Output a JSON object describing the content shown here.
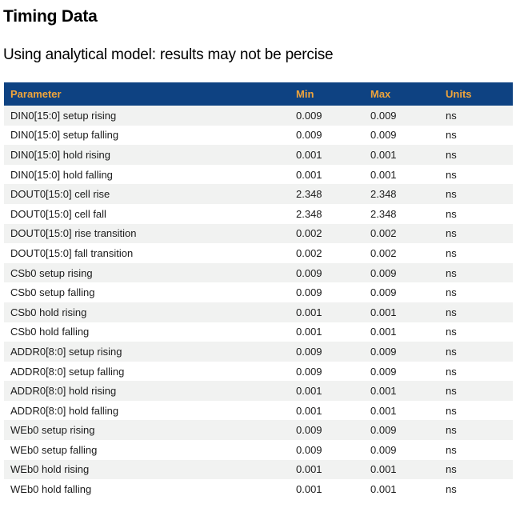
{
  "page": {
    "title": "Timing Data",
    "subtitle": "Using analytical model: results may not be percise"
  },
  "colors": {
    "header_bg": "#0e4282",
    "header_text": "#efa43b",
    "row_alt_bg": "#f1f2f1",
    "row_text": "#1c1c1c"
  },
  "table": {
    "columns": [
      "Parameter",
      "Min",
      "Max",
      "Units"
    ],
    "rows": [
      {
        "parameter": "DIN0[15:0] setup rising",
        "min": "0.009",
        "max": "0.009",
        "units": "ns"
      },
      {
        "parameter": "DIN0[15:0] setup falling",
        "min": "0.009",
        "max": "0.009",
        "units": "ns"
      },
      {
        "parameter": "DIN0[15:0] hold rising",
        "min": "0.001",
        "max": "0.001",
        "units": "ns"
      },
      {
        "parameter": "DIN0[15:0] hold falling",
        "min": "0.001",
        "max": "0.001",
        "units": "ns"
      },
      {
        "parameter": "DOUT0[15:0] cell rise",
        "min": "2.348",
        "max": "2.348",
        "units": "ns"
      },
      {
        "parameter": "DOUT0[15:0] cell fall",
        "min": "2.348",
        "max": "2.348",
        "units": "ns"
      },
      {
        "parameter": "DOUT0[15:0] rise transition",
        "min": "0.002",
        "max": "0.002",
        "units": "ns"
      },
      {
        "parameter": "DOUT0[15:0] fall transition",
        "min": "0.002",
        "max": "0.002",
        "units": "ns"
      },
      {
        "parameter": "CSb0 setup rising",
        "min": "0.009",
        "max": "0.009",
        "units": "ns"
      },
      {
        "parameter": "CSb0 setup falling",
        "min": "0.009",
        "max": "0.009",
        "units": "ns"
      },
      {
        "parameter": "CSb0 hold rising",
        "min": "0.001",
        "max": "0.001",
        "units": "ns"
      },
      {
        "parameter": "CSb0 hold falling",
        "min": "0.001",
        "max": "0.001",
        "units": "ns"
      },
      {
        "parameter": "ADDR0[8:0] setup rising",
        "min": "0.009",
        "max": "0.009",
        "units": "ns"
      },
      {
        "parameter": "ADDR0[8:0] setup falling",
        "min": "0.009",
        "max": "0.009",
        "units": "ns"
      },
      {
        "parameter": "ADDR0[8:0] hold rising",
        "min": "0.001",
        "max": "0.001",
        "units": "ns"
      },
      {
        "parameter": "ADDR0[8:0] hold falling",
        "min": "0.001",
        "max": "0.001",
        "units": "ns"
      },
      {
        "parameter": "WEb0 setup rising",
        "min": "0.009",
        "max": "0.009",
        "units": "ns"
      },
      {
        "parameter": "WEb0 setup falling",
        "min": "0.009",
        "max": "0.009",
        "units": "ns"
      },
      {
        "parameter": "WEb0 hold rising",
        "min": "0.001",
        "max": "0.001",
        "units": "ns"
      },
      {
        "parameter": "WEb0 hold falling",
        "min": "0.001",
        "max": "0.001",
        "units": "ns"
      }
    ]
  }
}
